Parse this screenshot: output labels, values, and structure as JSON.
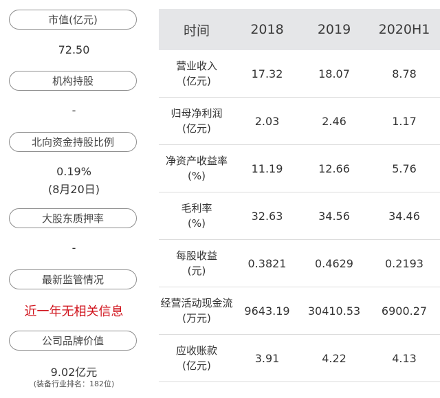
{
  "left": {
    "market_cap_label": "市值(亿元)",
    "market_cap_value": "72.50",
    "institution_label": "机构持股",
    "institution_value": "-",
    "northbound_label": "北向资金持股比例",
    "northbound_value": "0.19%",
    "northbound_date": "(8月20日)",
    "pledge_label": "大股东质押率",
    "pledge_value": "-",
    "regulation_label": "最新监管情况",
    "regulation_value": "近一年无相关信息",
    "brand_label": "公司品牌价值",
    "brand_value": "9.02亿元",
    "brand_rank": "(装备行业排名：182位)",
    "colors": {
      "alert": "#d0121b",
      "header_bg": "#e5e6e8"
    }
  },
  "table": {
    "headers": [
      "时间",
      "2018",
      "2019",
      "2020H1"
    ],
    "rows": [
      {
        "name": "营业收入",
        "unit": "(亿元)",
        "values": [
          "17.32",
          "18.07",
          "8.78"
        ]
      },
      {
        "name": "归母净利润",
        "unit": "(亿元)",
        "values": [
          "2.03",
          "2.46",
          "1.17"
        ]
      },
      {
        "name": "净资产收益率",
        "unit": "(%)",
        "values": [
          "11.19",
          "12.66",
          "5.76"
        ]
      },
      {
        "name": "毛利率",
        "unit": "(%)",
        "values": [
          "32.63",
          "34.56",
          "34.46"
        ]
      },
      {
        "name": "每股收益",
        "unit": "(元)",
        "values": [
          "0.3821",
          "0.4629",
          "0.2193"
        ]
      },
      {
        "name": "经营活动现金流",
        "unit": "(万元)",
        "values": [
          "9643.19",
          "30410.53",
          "6900.27"
        ]
      },
      {
        "name": "应收账款",
        "unit": "(亿元)",
        "values": [
          "3.91",
          "4.22",
          "4.13"
        ]
      }
    ]
  }
}
